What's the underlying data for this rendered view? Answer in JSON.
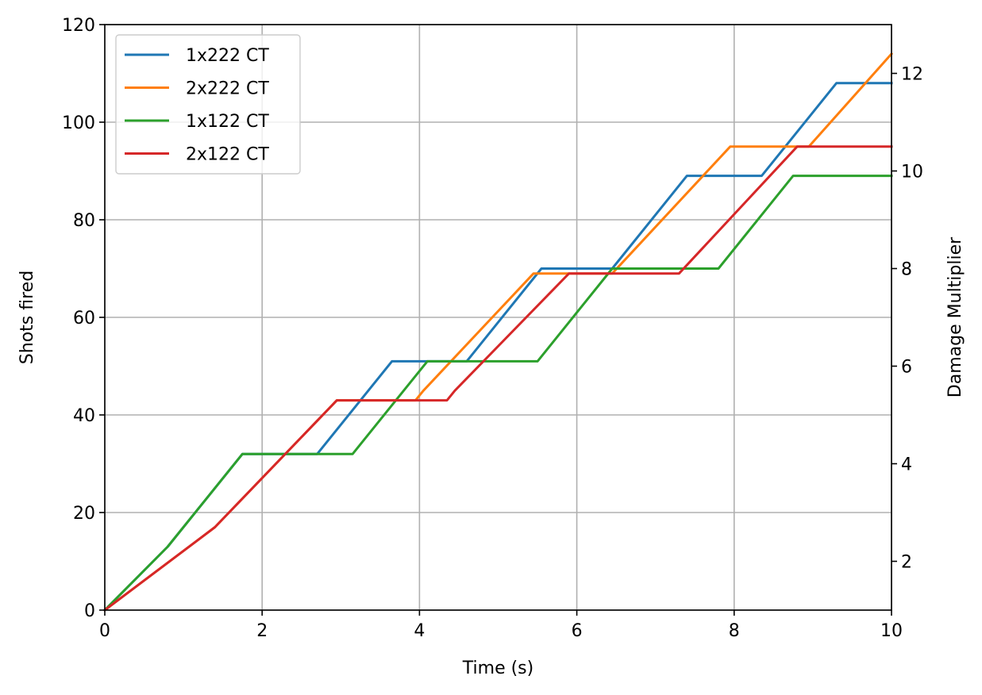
{
  "chart_data": {
    "type": "line",
    "xlabel": "Time (s)",
    "ylabel": "Shots fired",
    "y2label": "Damage Multiplier",
    "xlim": [
      0,
      10
    ],
    "ylim": [
      0,
      120
    ],
    "y2lim": [
      1,
      13
    ],
    "xticks": [
      "0",
      "2",
      "4",
      "6",
      "8",
      "10"
    ],
    "yticks": [
      "0",
      "20",
      "40",
      "60",
      "80",
      "100",
      "120"
    ],
    "y2ticks": [
      "2",
      "4",
      "6",
      "8",
      "10",
      "12"
    ],
    "grid": true,
    "legend_position": "top-left",
    "series": [
      {
        "name": "1x222 CT",
        "color": "#1f77b4",
        "points": [
          [
            0,
            0
          ],
          [
            0.8,
            13
          ],
          [
            1.75,
            32
          ],
          [
            2.7,
            32
          ],
          [
            3.65,
            51
          ],
          [
            4.6,
            51
          ],
          [
            5.55,
            70
          ],
          [
            6.45,
            70
          ],
          [
            7.4,
            89
          ],
          [
            8.35,
            89
          ],
          [
            9.3,
            108
          ],
          [
            10,
            108
          ]
        ]
      },
      {
        "name": "2x222 CT",
        "color": "#ff7f0e",
        "points": [
          [
            0,
            0
          ],
          [
            1.4,
            17
          ],
          [
            2.95,
            43
          ],
          [
            3.95,
            43
          ],
          [
            4.05,
            45
          ],
          [
            5.45,
            69
          ],
          [
            6.45,
            69
          ],
          [
            7.95,
            95
          ],
          [
            8.95,
            95
          ],
          [
            10,
            114
          ]
        ]
      },
      {
        "name": "1x122 CT",
        "color": "#2ca02c",
        "points": [
          [
            0,
            0
          ],
          [
            0.8,
            13
          ],
          [
            1.75,
            32
          ],
          [
            3.15,
            32
          ],
          [
            4.1,
            51
          ],
          [
            5.5,
            51
          ],
          [
            6.45,
            70
          ],
          [
            7.8,
            70
          ],
          [
            8.75,
            89
          ],
          [
            10,
            89
          ]
        ]
      },
      {
        "name": "2x122 CT",
        "color": "#d62728",
        "points": [
          [
            0,
            0
          ],
          [
            1.4,
            17
          ],
          [
            2.95,
            43
          ],
          [
            4.35,
            43
          ],
          [
            4.45,
            45
          ],
          [
            5.9,
            69
          ],
          [
            7.3,
            69
          ],
          [
            8.8,
            95
          ],
          [
            10,
            95
          ]
        ]
      }
    ]
  }
}
